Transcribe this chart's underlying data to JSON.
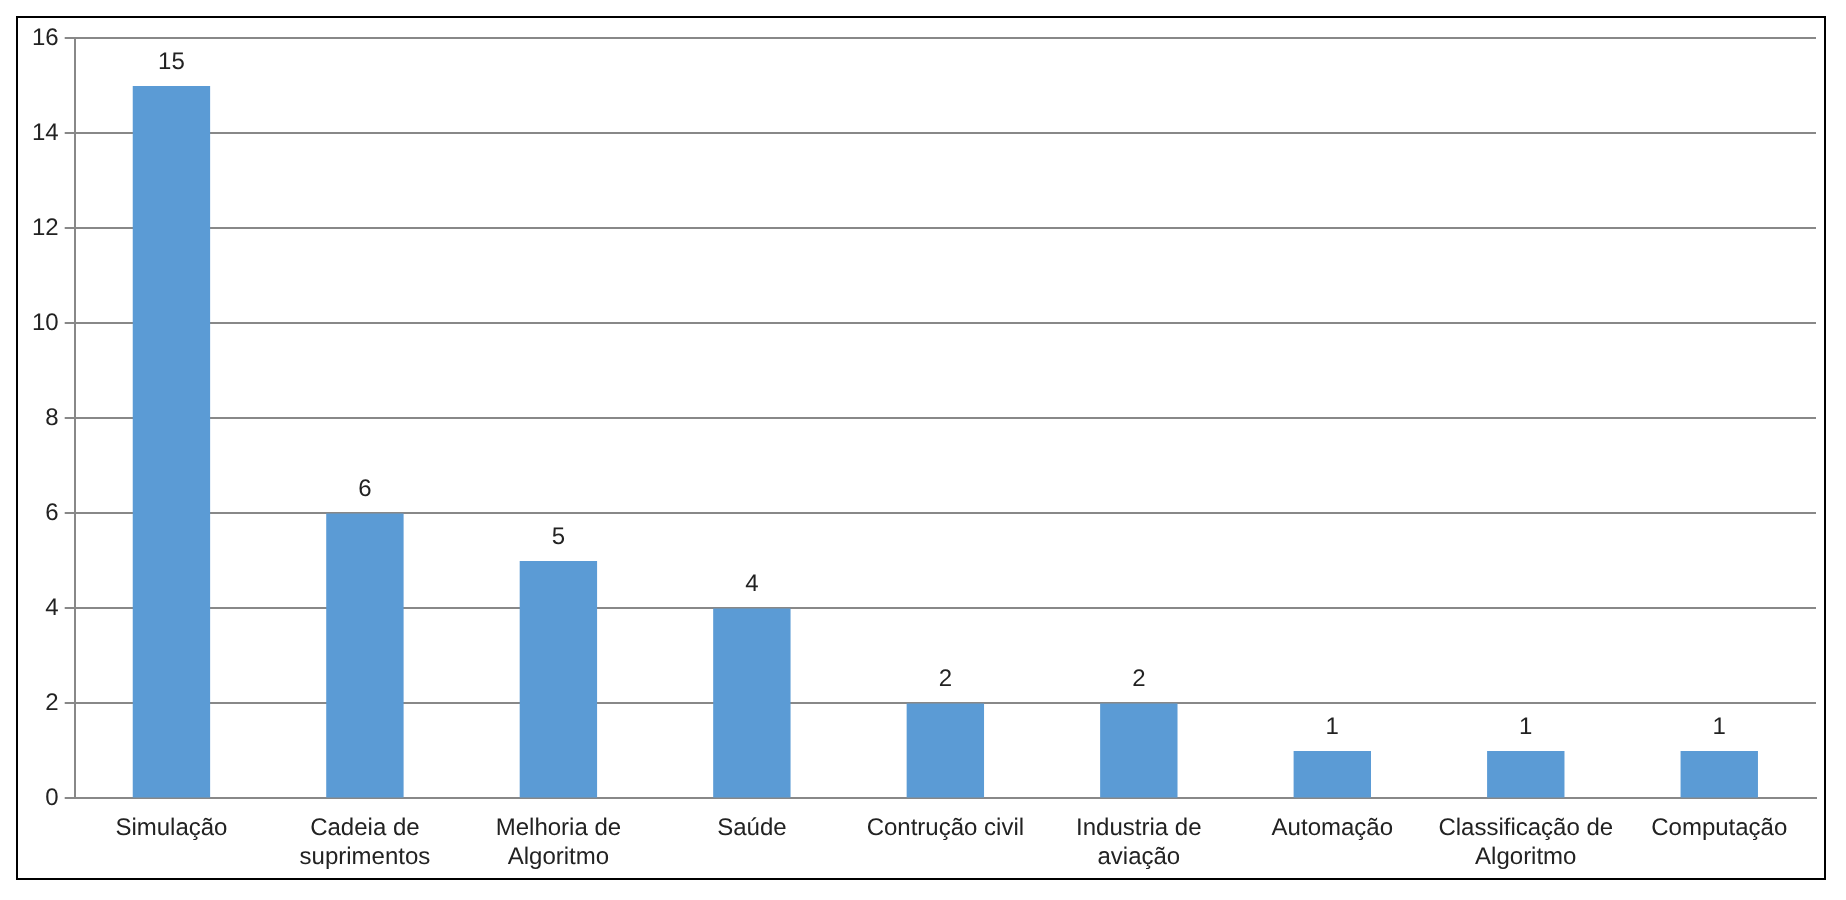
{
  "chart_data": {
    "type": "bar",
    "categories": [
      "Simulação",
      "Cadeia de suprimentos",
      "Melhoria de Algoritmo",
      "Saúde",
      "Contrução civil",
      "Industria de aviação",
      "Automação",
      "Classificação de Algoritmo",
      "Computação"
    ],
    "values": [
      15,
      6,
      5,
      4,
      2,
      2,
      1,
      1,
      1
    ],
    "color": "#5b9bd5",
    "ylim": [
      0,
      16
    ],
    "yticks": [
      0,
      2,
      4,
      6,
      8,
      10,
      12,
      14,
      16
    ],
    "grid": "y",
    "data_labels": true,
    "legend": false
  }
}
